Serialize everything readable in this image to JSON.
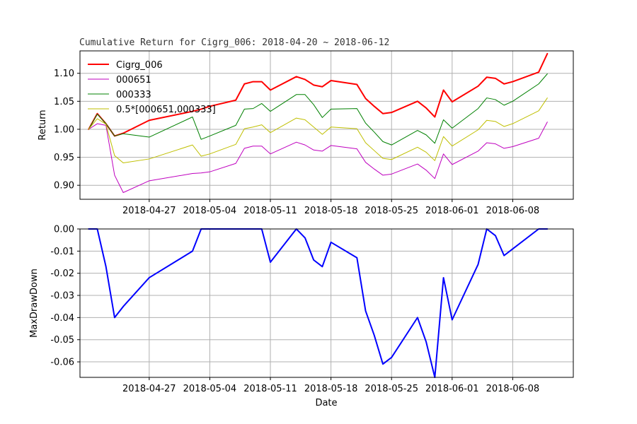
{
  "chart_data": [
    {
      "type": "line",
      "title": "Cumulative Return for Cigrg_006: 2018-04-20 ~ 2018-06-12",
      "xlabel": "",
      "ylabel": "Return",
      "ylim": [
        0.875,
        1.14
      ],
      "xlim": [
        "2018-04-19",
        "2018-06-15"
      ],
      "grid": true,
      "legend_position": "top-left",
      "xticks": [
        "2018-04-27",
        "2018-05-04",
        "2018-05-11",
        "2018-05-18",
        "2018-05-25",
        "2018-06-01",
        "2018-06-08"
      ],
      "yticks": [
        0.9,
        0.95,
        1.0,
        1.05,
        1.1
      ],
      "x": [
        "2018-04-20",
        "2018-04-21",
        "2018-04-22",
        "2018-04-23",
        "2018-04-24",
        "2018-04-27",
        "2018-05-02",
        "2018-05-03",
        "2018-05-04",
        "2018-05-07",
        "2018-05-08",
        "2018-05-09",
        "2018-05-10",
        "2018-05-11",
        "2018-05-14",
        "2018-05-15",
        "2018-05-16",
        "2018-05-17",
        "2018-05-18",
        "2018-05-21",
        "2018-05-22",
        "2018-05-23",
        "2018-05-24",
        "2018-05-25",
        "2018-05-28",
        "2018-05-29",
        "2018-05-30",
        "2018-05-31",
        "2018-06-01",
        "2018-06-04",
        "2018-06-05",
        "2018-06-06",
        "2018-06-07",
        "2018-06-08",
        "2018-06-11",
        "2018-06-12"
      ],
      "series": [
        {
          "name": "Cigrg_006",
          "color": "#ff0000",
          "width": 2,
          "values": [
            1.0,
            1.028,
            1.01,
            0.988,
            0.993,
            1.016,
            1.032,
            1.036,
            1.041,
            1.052,
            1.081,
            1.085,
            1.085,
            1.07,
            1.094,
            1.089,
            1.079,
            1.076,
            1.087,
            1.08,
            1.055,
            1.041,
            1.028,
            1.03,
            1.05,
            1.038,
            1.022,
            1.07,
            1.049,
            1.077,
            1.093,
            1.091,
            1.081,
            1.085,
            1.102,
            1.135
          ]
        },
        {
          "name": "000651",
          "color": "#bf00bf",
          "width": 1,
          "values": [
            1.0,
            1.01,
            1.007,
            0.918,
            0.887,
            0.908,
            0.921,
            0.922,
            0.924,
            0.939,
            0.966,
            0.97,
            0.97,
            0.956,
            0.977,
            0.972,
            0.963,
            0.961,
            0.971,
            0.965,
            0.941,
            0.929,
            0.918,
            0.92,
            0.938,
            0.927,
            0.912,
            0.956,
            0.937,
            0.961,
            0.976,
            0.974,
            0.966,
            0.969,
            0.984,
            1.013
          ]
        },
        {
          "name": "000333",
          "color": "#008000",
          "width": 1,
          "values": [
            1.0,
            1.027,
            1.01,
            0.988,
            0.992,
            0.986,
            1.022,
            0.982,
            0.988,
            1.007,
            1.036,
            1.037,
            1.046,
            1.032,
            1.062,
            1.062,
            1.044,
            1.021,
            1.036,
            1.037,
            1.011,
            0.995,
            0.978,
            0.972,
            0.998,
            0.99,
            0.975,
            1.017,
            1.002,
            1.037,
            1.056,
            1.053,
            1.043,
            1.05,
            1.081,
            1.099
          ]
        },
        {
          "name": "0.5*[000651,000333]",
          "color": "#bfbf00",
          "width": 1,
          "values": [
            1.0,
            1.019,
            1.009,
            0.953,
            0.94,
            0.947,
            0.972,
            0.952,
            0.956,
            0.973,
            1.001,
            1.004,
            1.008,
            0.994,
            1.02,
            1.017,
            1.004,
            0.991,
            1.004,
            1.001,
            0.976,
            0.962,
            0.948,
            0.946,
            0.968,
            0.959,
            0.944,
            0.987,
            0.97,
            0.999,
            1.016,
            1.014,
            1.005,
            1.01,
            1.033,
            1.056
          ]
        }
      ]
    },
    {
      "type": "line",
      "title": "",
      "xlabel": "Date",
      "ylabel": "MaxDrawDown",
      "ylim": [
        -0.067,
        0.0
      ],
      "xlim": [
        "2018-04-19",
        "2018-06-15"
      ],
      "grid": true,
      "xticks": [
        "2018-04-27",
        "2018-05-04",
        "2018-05-11",
        "2018-05-18",
        "2018-05-25",
        "2018-06-01",
        "2018-06-08"
      ],
      "yticks": [
        "0.00",
        "-0.01",
        "-0.02",
        "-0.03",
        "-0.04",
        "-0.05",
        "-0.06"
      ],
      "x": [
        "2018-04-20",
        "2018-04-21",
        "2018-04-22",
        "2018-04-23",
        "2018-04-24",
        "2018-04-27",
        "2018-05-02",
        "2018-05-03",
        "2018-05-04",
        "2018-05-07",
        "2018-05-08",
        "2018-05-09",
        "2018-05-10",
        "2018-05-11",
        "2018-05-14",
        "2018-05-15",
        "2018-05-16",
        "2018-05-17",
        "2018-05-18",
        "2018-05-21",
        "2018-05-22",
        "2018-05-23",
        "2018-05-24",
        "2018-05-25",
        "2018-05-28",
        "2018-05-29",
        "2018-05-30",
        "2018-05-31",
        "2018-06-01",
        "2018-06-04",
        "2018-06-05",
        "2018-06-06",
        "2018-06-07",
        "2018-06-08",
        "2018-06-11",
        "2018-06-12"
      ],
      "series": [
        {
          "name": "MaxDrawDown",
          "color": "#0000ff",
          "width": 2,
          "values": [
            0.0,
            0.0,
            -0.017,
            -0.04,
            -0.035,
            -0.022,
            -0.01,
            0.0,
            0.0,
            0.0,
            0.0,
            0.0,
            0.0,
            -0.015,
            0.0,
            -0.004,
            -0.014,
            -0.017,
            -0.006,
            -0.013,
            -0.037,
            -0.048,
            -0.061,
            -0.058,
            -0.04,
            -0.051,
            -0.067,
            -0.022,
            -0.041,
            -0.016,
            0.0,
            -0.003,
            -0.012,
            -0.009,
            0.0,
            0.0
          ]
        }
      ]
    }
  ]
}
